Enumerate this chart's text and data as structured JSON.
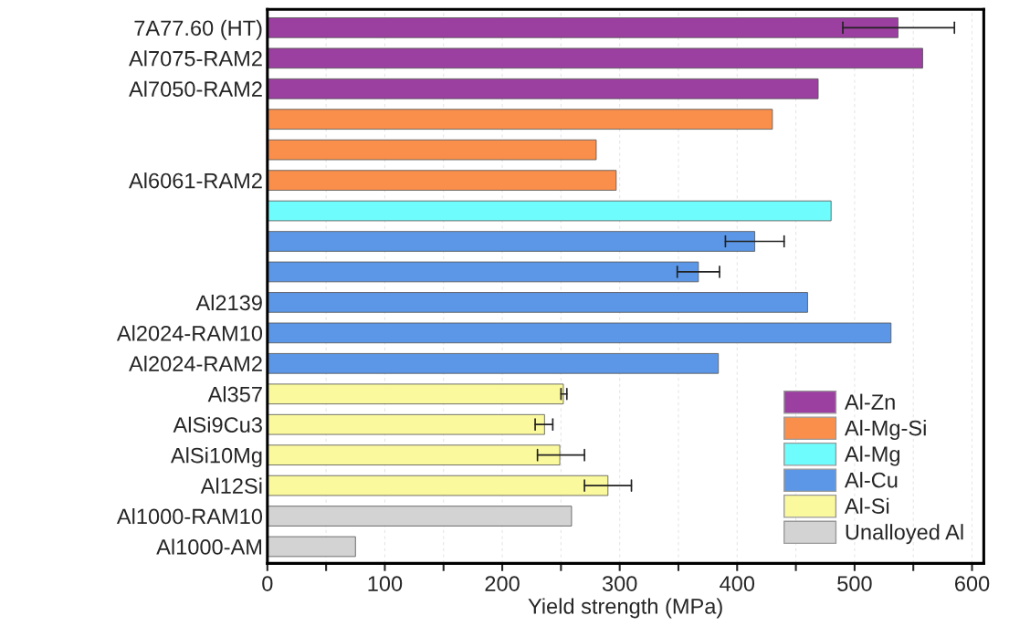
{
  "chart_data": {
    "type": "bar",
    "orientation": "horizontal",
    "xlabel": "Yield strength (MPa)",
    "categories": [
      "7A77.60 (HT)",
      "Al7075-RAM2",
      "Al7050-RAM2",
      null,
      null,
      "Al6061-RAM2",
      null,
      null,
      null,
      "Al2139",
      "Al2024-RAM10",
      "Al2024-RAM2",
      "Al357",
      "AlSi9Cu3",
      "AlSi10Mg",
      "Al12Si",
      "Al1000-RAM10",
      "Al1000-AM"
    ],
    "series": [
      {
        "name": "Al-Zn",
        "color": "#9b3fa0",
        "values": [
          537,
          558,
          469,
          null,
          null,
          null,
          null,
          null,
          null,
          null,
          null,
          null,
          null,
          null,
          null,
          null,
          null,
          null
        ],
        "errors": [
          [
            490,
            585
          ],
          null,
          null,
          null,
          null,
          null,
          null,
          null,
          null,
          null,
          null,
          null,
          null,
          null,
          null,
          null,
          null,
          null
        ]
      },
      {
        "name": "Al-Mg-Si",
        "color": "#fa8f4c",
        "values": [
          null,
          null,
          null,
          430,
          280,
          297,
          null,
          null,
          null,
          null,
          null,
          null,
          null,
          null,
          null,
          null,
          null,
          null
        ]
      },
      {
        "name": "Al-Mg",
        "color": "#6ffcfc",
        "values": [
          null,
          null,
          null,
          null,
          null,
          null,
          480,
          null,
          null,
          null,
          null,
          null,
          null,
          null,
          null,
          null,
          null,
          null
        ]
      },
      {
        "name": "Al-Cu",
        "color": "#5b97e6",
        "values": [
          null,
          null,
          null,
          null,
          null,
          null,
          null,
          415,
          367,
          460,
          531,
          384,
          null,
          null,
          null,
          null,
          null,
          null
        ],
        "errors": [
          null,
          null,
          null,
          null,
          null,
          null,
          null,
          [
            390,
            440
          ],
          [
            349,
            385
          ],
          null,
          null,
          null,
          null,
          null,
          null,
          null,
          null,
          null
        ]
      },
      {
        "name": "Al-Si",
        "color": "#fbf99d",
        "values": [
          null,
          null,
          null,
          null,
          null,
          null,
          null,
          null,
          null,
          null,
          null,
          null,
          252,
          236,
          249,
          290,
          null,
          null
        ],
        "errors": [
          null,
          null,
          null,
          null,
          null,
          null,
          null,
          null,
          null,
          null,
          null,
          null,
          [
            250,
            255
          ],
          [
            228,
            243
          ],
          [
            230,
            270
          ],
          [
            270,
            310
          ],
          null,
          null
        ]
      },
      {
        "name": "Unalloyed Al",
        "color": "#d3d3d3",
        "values": [
          null,
          null,
          null,
          null,
          null,
          null,
          null,
          null,
          null,
          null,
          null,
          null,
          null,
          null,
          null,
          null,
          259,
          75
        ]
      }
    ],
    "xlim": [
      0,
      610
    ],
    "xticks": [
      0,
      {
        "value": 50,
        "label": null
      },
      100,
      {
        "value": 150,
        "label": null
      },
      200,
      {
        "value": 250,
        "label": null
      },
      300,
      {
        "value": 350,
        "label": null
      },
      400,
      {
        "value": 450,
        "label": null
      },
      500,
      {
        "value": 550,
        "label": null
      },
      600
    ],
    "grid": "x",
    "legend": "bottom right"
  }
}
